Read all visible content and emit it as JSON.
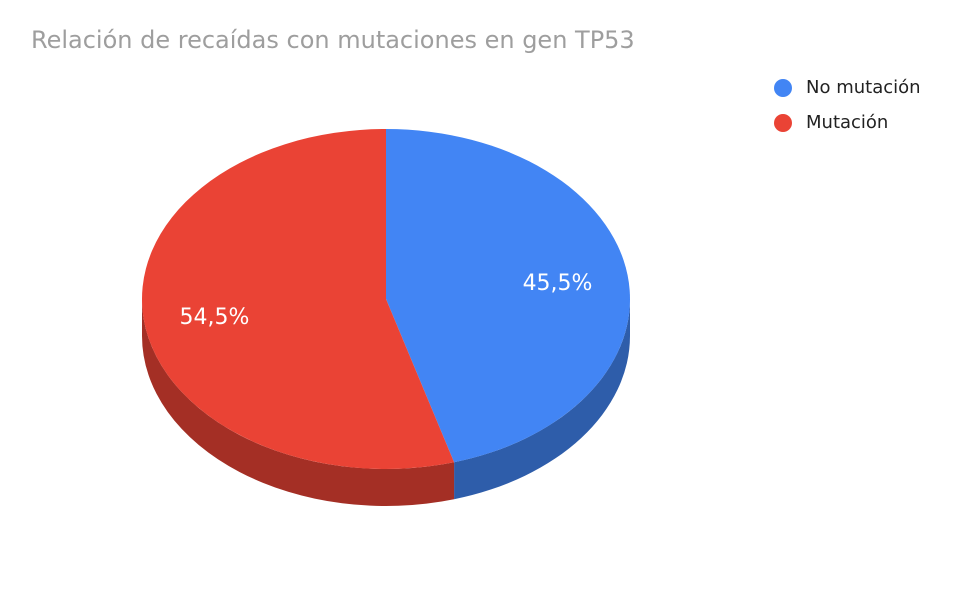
{
  "chart_data": {
    "type": "pie",
    "title": "Relación de recaídas con mutaciones en gen TP53",
    "three_d": true,
    "legend_position": "right",
    "series": [
      {
        "name": "No mutación",
        "value": 45.5,
        "label": "45,5%",
        "color": "#4285f4",
        "side_color": "#2e5daa"
      },
      {
        "name": "Mutación",
        "value": 54.5,
        "label": "54,5%",
        "color": "#ea4335",
        "side_color": "#a42f25"
      }
    ]
  }
}
